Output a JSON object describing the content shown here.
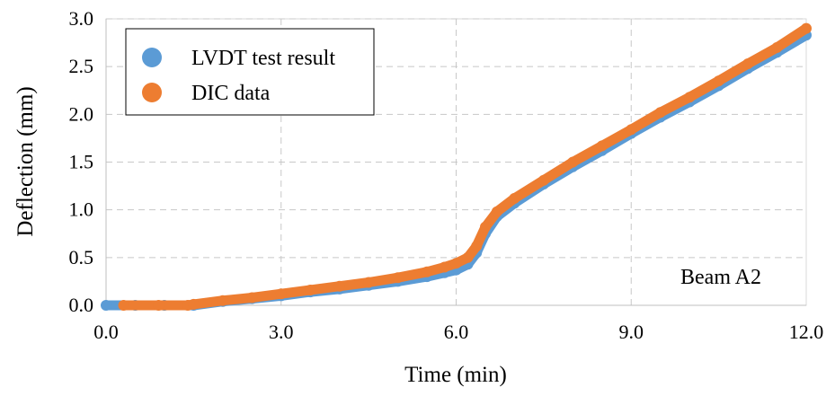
{
  "chart_data": {
    "type": "scatter",
    "title": "",
    "xlabel": "Time (min)",
    "ylabel": "Deflection (mm)",
    "xlim": [
      0,
      12
    ],
    "ylim": [
      0,
      3
    ],
    "xticks": [
      "0.0",
      "3.0",
      "6.0",
      "9.0",
      "12.0"
    ],
    "yticks": [
      "0.0",
      "0.5",
      "1.0",
      "1.5",
      "2.0",
      "2.5",
      "3.0"
    ],
    "grid": true,
    "legend_position": "top-left",
    "annotation": "Beam A2",
    "series": [
      {
        "name": "LVDT test result",
        "color": "#5b9bd5",
        "points": [
          [
            0.0,
            0.0
          ],
          [
            0.5,
            0.0
          ],
          [
            1.0,
            0.0
          ],
          [
            1.5,
            0.0
          ],
          [
            2.0,
            0.04
          ],
          [
            2.5,
            0.07
          ],
          [
            3.0,
            0.1
          ],
          [
            3.5,
            0.14
          ],
          [
            4.0,
            0.17
          ],
          [
            4.5,
            0.21
          ],
          [
            5.0,
            0.25
          ],
          [
            5.5,
            0.3
          ],
          [
            5.8,
            0.34
          ],
          [
            6.0,
            0.37
          ],
          [
            6.2,
            0.43
          ],
          [
            6.35,
            0.55
          ],
          [
            6.5,
            0.75
          ],
          [
            6.7,
            0.93
          ],
          [
            7.0,
            1.07
          ],
          [
            7.5,
            1.27
          ],
          [
            8.0,
            1.45
          ],
          [
            8.5,
            1.62
          ],
          [
            9.0,
            1.8
          ],
          [
            9.5,
            1.97
          ],
          [
            10.0,
            2.13
          ],
          [
            10.5,
            2.3
          ],
          [
            11.0,
            2.48
          ],
          [
            11.5,
            2.65
          ],
          [
            12.0,
            2.83
          ]
        ]
      },
      {
        "name": "DIC data",
        "color": "#ed7d31",
        "points": [
          [
            0.3,
            0.0
          ],
          [
            0.9,
            0.0
          ],
          [
            1.4,
            0.0
          ],
          [
            1.5,
            0.01
          ],
          [
            2.0,
            0.05
          ],
          [
            2.5,
            0.08
          ],
          [
            3.0,
            0.12
          ],
          [
            3.5,
            0.16
          ],
          [
            4.0,
            0.2
          ],
          [
            4.5,
            0.24
          ],
          [
            5.0,
            0.29
          ],
          [
            5.5,
            0.35
          ],
          [
            5.8,
            0.4
          ],
          [
            6.0,
            0.44
          ],
          [
            6.2,
            0.5
          ],
          [
            6.35,
            0.62
          ],
          [
            6.5,
            0.82
          ],
          [
            6.7,
            0.98
          ],
          [
            7.0,
            1.12
          ],
          [
            7.5,
            1.31
          ],
          [
            8.0,
            1.5
          ],
          [
            8.5,
            1.67
          ],
          [
            9.0,
            1.84
          ],
          [
            9.5,
            2.02
          ],
          [
            10.0,
            2.18
          ],
          [
            10.5,
            2.35
          ],
          [
            11.0,
            2.53
          ],
          [
            11.5,
            2.7
          ],
          [
            12.0,
            2.9
          ]
        ]
      }
    ]
  }
}
